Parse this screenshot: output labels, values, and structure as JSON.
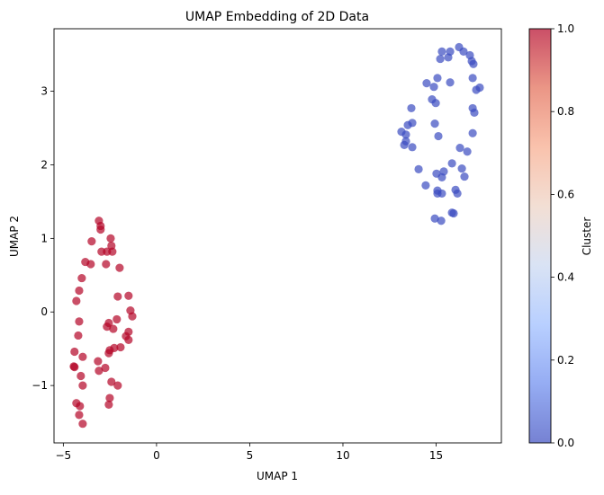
{
  "chart_data": {
    "type": "scatter",
    "title": "UMAP Embedding of 2D Data",
    "xlabel": "UMAP 1",
    "ylabel": "UMAP 2",
    "xlim": [
      -5.5,
      18.5
    ],
    "ylim": [
      -1.78,
      3.85
    ],
    "xticks": [
      -5,
      0,
      5,
      10,
      15
    ],
    "xtick_labels": [
      "−5",
      "0",
      "5",
      "10",
      "15"
    ],
    "yticks": [
      -1,
      0,
      1,
      2,
      3
    ],
    "yticks_labels": [
      "−1",
      "0",
      "1",
      "2",
      "3"
    ],
    "grid": false,
    "alpha": 0.7,
    "colormap": "coolwarm",
    "colorbar": {
      "label": "Cluster",
      "range": [
        0,
        1
      ],
      "ticks": [
        0.0,
        0.2,
        0.4,
        0.6,
        0.8,
        1.0
      ],
      "tick_labels": [
        "0.0",
        "0.2",
        "0.4",
        "0.6",
        "0.8",
        "1.0"
      ],
      "colors": [
        "#3b4cc0",
        "#6889ee",
        "#9abbff",
        "#c9d7f0",
        "#edd1c2",
        "#f7a889",
        "#e26952",
        "#b40426"
      ]
    },
    "series": [
      {
        "cluster": 1,
        "color": "#b40426",
        "points": [
          [
            -3.09,
            1.24
          ],
          [
            -3.0,
            1.17
          ],
          [
            -3.0,
            1.12
          ],
          [
            -3.48,
            0.96
          ],
          [
            -2.46,
            1.0
          ],
          [
            -2.42,
            0.9
          ],
          [
            -2.95,
            0.82
          ],
          [
            -2.66,
            0.82
          ],
          [
            -2.37,
            0.82
          ],
          [
            -3.82,
            0.68
          ],
          [
            -3.53,
            0.65
          ],
          [
            -2.71,
            0.65
          ],
          [
            -1.98,
            0.6
          ],
          [
            -4.01,
            0.46
          ],
          [
            -4.15,
            0.29
          ],
          [
            -4.3,
            0.15
          ],
          [
            -2.08,
            0.21
          ],
          [
            -1.5,
            0.22
          ],
          [
            -1.4,
            0.02
          ],
          [
            -1.3,
            -0.06
          ],
          [
            -4.15,
            -0.13
          ],
          [
            -4.2,
            -0.32
          ],
          [
            -2.56,
            -0.15
          ],
          [
            -2.66,
            -0.2
          ],
          [
            -2.13,
            -0.1
          ],
          [
            -2.32,
            -0.23
          ],
          [
            -1.5,
            -0.27
          ],
          [
            -1.64,
            -0.33
          ],
          [
            -1.5,
            -0.38
          ],
          [
            -4.4,
            -0.54
          ],
          [
            -3.96,
            -0.61
          ],
          [
            -4.44,
            -0.74
          ],
          [
            -4.4,
            -0.75
          ],
          [
            -3.14,
            -0.67
          ],
          [
            -1.93,
            -0.48
          ],
          [
            -2.51,
            -0.52
          ],
          [
            -2.56,
            -0.56
          ],
          [
            -2.27,
            -0.49
          ],
          [
            -4.06,
            -0.87
          ],
          [
            -3.96,
            -1.0
          ],
          [
            -3.09,
            -0.8
          ],
          [
            -2.75,
            -0.76
          ],
          [
            -2.42,
            -0.95
          ],
          [
            -2.08,
            -1.0
          ],
          [
            -2.51,
            -1.17
          ],
          [
            -2.56,
            -1.26
          ],
          [
            -4.3,
            -1.24
          ],
          [
            -4.11,
            -1.28
          ],
          [
            -4.15,
            -1.4
          ],
          [
            -3.96,
            -1.52
          ]
        ]
      },
      {
        "cluster": 0,
        "color": "#3b4cc0",
        "points": [
          [
            15.31,
            3.54
          ],
          [
            15.75,
            3.54
          ],
          [
            15.22,
            3.44
          ],
          [
            15.65,
            3.46
          ],
          [
            16.23,
            3.6
          ],
          [
            16.47,
            3.54
          ],
          [
            16.81,
            3.49
          ],
          [
            16.91,
            3.41
          ],
          [
            17.0,
            3.37
          ],
          [
            15.07,
            3.18
          ],
          [
            14.49,
            3.11
          ],
          [
            14.88,
            3.06
          ],
          [
            15.75,
            3.12
          ],
          [
            16.96,
            3.18
          ],
          [
            17.15,
            3.02
          ],
          [
            17.34,
            3.05
          ],
          [
            14.78,
            2.89
          ],
          [
            14.98,
            2.84
          ],
          [
            13.67,
            2.77
          ],
          [
            16.96,
            2.77
          ],
          [
            17.05,
            2.71
          ],
          [
            13.72,
            2.57
          ],
          [
            13.48,
            2.54
          ],
          [
            14.93,
            2.56
          ],
          [
            13.14,
            2.45
          ],
          [
            13.38,
            2.41
          ],
          [
            15.12,
            2.39
          ],
          [
            16.96,
            2.43
          ],
          [
            13.38,
            2.32
          ],
          [
            13.29,
            2.27
          ],
          [
            13.72,
            2.24
          ],
          [
            16.28,
            2.23
          ],
          [
            16.67,
            2.18
          ],
          [
            15.85,
            2.02
          ],
          [
            14.06,
            1.94
          ],
          [
            16.38,
            1.95
          ],
          [
            16.52,
            1.84
          ],
          [
            15.02,
            1.88
          ],
          [
            15.41,
            1.91
          ],
          [
            15.31,
            1.83
          ],
          [
            14.44,
            1.72
          ],
          [
            15.07,
            1.65
          ],
          [
            15.07,
            1.61
          ],
          [
            15.31,
            1.61
          ],
          [
            16.04,
            1.66
          ],
          [
            16.14,
            1.61
          ],
          [
            15.85,
            1.35
          ],
          [
            15.94,
            1.34
          ],
          [
            14.93,
            1.27
          ],
          [
            15.27,
            1.24
          ]
        ]
      }
    ]
  }
}
